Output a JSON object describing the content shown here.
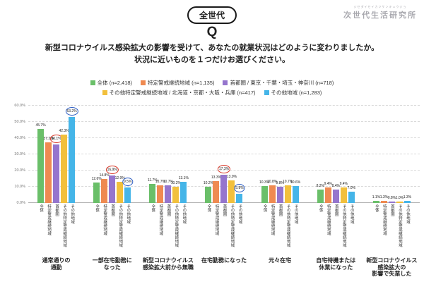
{
  "header": {
    "audience_badge": "全世代",
    "q_mark": "Q",
    "question": "新型コロナウイルス感染拡大の影響を受けて、あなたの就業状況はどのように変わりましたか。\n状況に近いものを１つだけお選びください。",
    "logo": {
      "reading": "ジセダイセイカツケンキュウジョ",
      "name": "次世代生活研究所"
    }
  },
  "chart_data": {
    "type": "bar",
    "title": "",
    "xlabel": "",
    "ylabel": "",
    "ylim": [
      0,
      60
    ],
    "yticks": [
      "0.0%",
      "10.0%",
      "20.0%",
      "30.0%",
      "40.0%",
      "50.0%",
      "60.0%"
    ],
    "grid": true,
    "legend_position": "top",
    "categories": [
      "通常通りの\n通勤",
      "一部在宅勤務に\nなった",
      "新型コロナウイルス\n感染拡大前から無職",
      "在宅勤務になった",
      "元々在宅",
      "自宅待機または\n休業になった",
      "新型コロナウイルス\n感染拡大の\n影響で失業した"
    ],
    "bar_labels": [
      "全体",
      "特定警戒継続地域",
      "首都圏",
      "その他特定警戒継続地域",
      "その他地域"
    ],
    "series": [
      {
        "name": "全体 (n=2,418)",
        "color": "#6abf69",
        "values": [
          45.7,
          12.6,
          11.7,
          10.2,
          10.3,
          8.2,
          1.1
        ]
      },
      {
        "name": "特定警戒継続地域 (n=1,135)",
        "color": "#ef8a51",
        "values": [
          37.2,
          14.8,
          10.7,
          13.3,
          10.8,
          9.4,
          1.3
        ]
      },
      {
        "name": "首都圏 / 東京・千葉・埼玉・神奈川 (n=718)",
        "color": "#9575cd",
        "values": [
          36.1,
          16.9,
          10.7,
          17.3,
          9.8,
          8.4,
          0.8
        ]
      },
      {
        "name": "その他特定警戒継続地域 / 北海道・京都・大阪・兵庫 (n=417)",
        "color": "#f2c03c",
        "values": [
          42.3,
          12.9,
          10.2,
          13.9,
          10.7,
          9.4,
          1.0
        ]
      },
      {
        "name": "その他地域 (n=1,283)",
        "color": "#45b5e8",
        "values": [
          53.2,
          9.5,
          13.1,
          5.8,
          10.6,
          7.0,
          1.3
        ]
      }
    ],
    "legend_rows": [
      [
        0,
        1,
        2
      ],
      [
        3,
        4
      ]
    ],
    "highlight_colors": {
      "red": "#d93a2b",
      "blue": "#2f5fc4"
    },
    "highlights": [
      {
        "category": 0,
        "series": 2,
        "circle": "red"
      },
      {
        "category": 0,
        "series": 4,
        "circle": "blue"
      },
      {
        "category": 1,
        "series": 2,
        "circle": "red"
      },
      {
        "category": 1,
        "series": 4,
        "circle": "blue"
      },
      {
        "category": 3,
        "series": 2,
        "circle": "red"
      },
      {
        "category": 3,
        "series": 4,
        "circle": "blue"
      }
    ]
  }
}
